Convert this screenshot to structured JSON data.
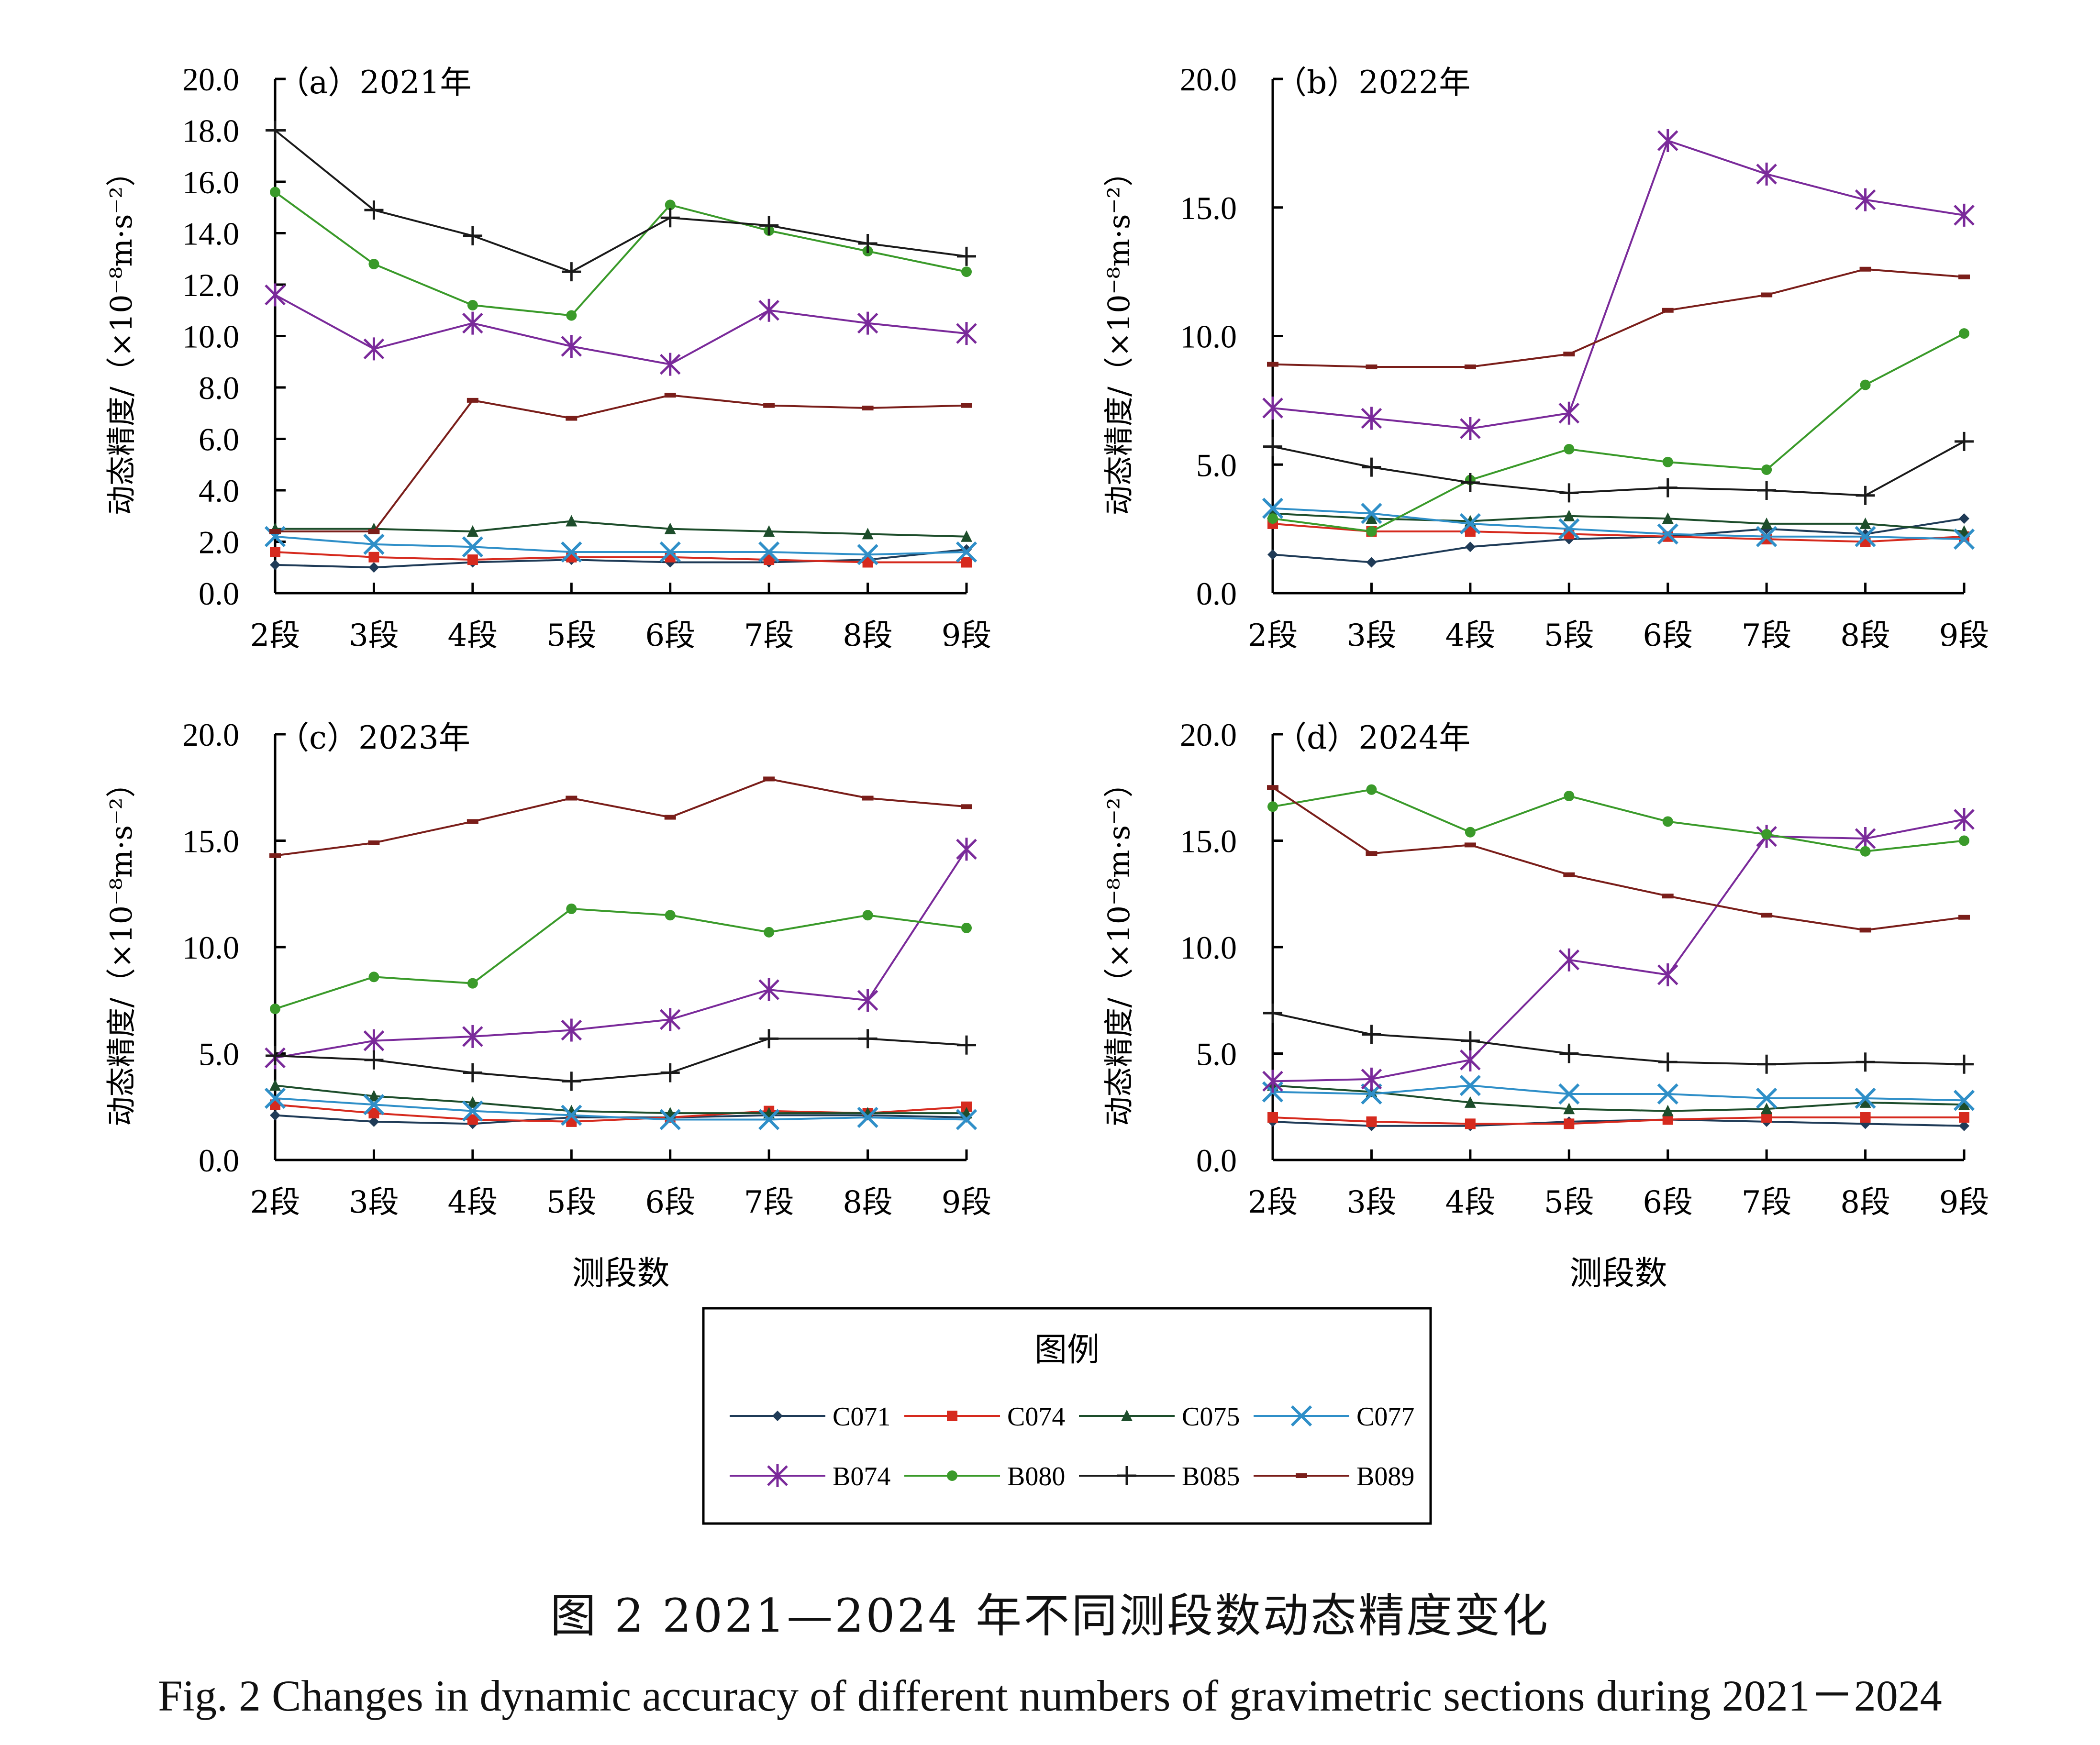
{
  "legend_title": "图例",
  "caption_cn": "图 2   2021—2024 年不同测段数动态精度变化",
  "caption_en": "Fig. 2    Changes in dynamic accuracy of different numbers of gravimetric sections during 2021－2024",
  "colors": {
    "C071": "#1f3b57",
    "C074": "#d62a1e",
    "C075": "#1d4d2b",
    "C077": "#2f8fc8",
    "B074": "#7a2a9a",
    "B080": "#3a9a2a",
    "B085": "#1a1a1a",
    "B089": "#7a1e1a"
  },
  "markers": {
    "C071": "diamond",
    "C074": "square",
    "C075": "triangle",
    "C077": "x",
    "B074": "asterisk",
    "B080": "circle",
    "B085": "plus",
    "B089": "dash"
  },
  "chart_data": [
    {
      "type": "line",
      "title": "（a）2021年",
      "ylabel": "动态精度/（×10⁻⁸m·s⁻²）",
      "xlabel": "",
      "categories": [
        "2段",
        "3段",
        "4段",
        "5段",
        "6段",
        "7段",
        "8段",
        "9段"
      ],
      "ylim": [
        0,
        20
      ],
      "yticks": [
        "0.0",
        "2.0",
        "4.0",
        "6.0",
        "8.0",
        "10.0",
        "12.0",
        "14.0",
        "16.0",
        "18.0",
        "20.0"
      ],
      "series": [
        {
          "name": "C071",
          "values": [
            1.1,
            1.0,
            1.2,
            1.3,
            1.2,
            1.2,
            1.3,
            1.7
          ]
        },
        {
          "name": "C074",
          "values": [
            1.6,
            1.4,
            1.3,
            1.4,
            1.4,
            1.3,
            1.2,
            1.2
          ]
        },
        {
          "name": "C075",
          "values": [
            2.5,
            2.5,
            2.4,
            2.8,
            2.5,
            2.4,
            2.3,
            2.2
          ]
        },
        {
          "name": "C077",
          "values": [
            2.2,
            1.9,
            1.8,
            1.6,
            1.6,
            1.6,
            1.5,
            1.6
          ]
        },
        {
          "name": "B074",
          "values": [
            11.6,
            9.5,
            10.5,
            9.6,
            8.9,
            11.0,
            10.5,
            10.1
          ]
        },
        {
          "name": "B080",
          "values": [
            15.6,
            12.8,
            11.2,
            10.8,
            15.1,
            14.1,
            13.3,
            12.5
          ]
        },
        {
          "name": "B085",
          "values": [
            18.0,
            14.9,
            13.9,
            12.5,
            14.6,
            14.3,
            13.6,
            13.1
          ]
        },
        {
          "name": "B089",
          "values": [
            2.4,
            2.4,
            7.5,
            6.8,
            7.7,
            7.3,
            7.2,
            7.3
          ]
        }
      ]
    },
    {
      "type": "line",
      "title": "（b）2022年",
      "ylabel": "动态精度/（×10⁻⁸m·s⁻²）",
      "xlabel": "",
      "categories": [
        "2段",
        "3段",
        "4段",
        "5段",
        "6段",
        "7段",
        "8段",
        "9段"
      ],
      "ylim": [
        0,
        20
      ],
      "yticks": [
        "0.0",
        "5.0",
        "10.0",
        "15.0",
        "20.0"
      ],
      "series": [
        {
          "name": "C071",
          "values": [
            1.5,
            1.2,
            1.8,
            2.1,
            2.2,
            2.5,
            2.3,
            2.9
          ]
        },
        {
          "name": "C074",
          "values": [
            2.7,
            2.4,
            2.4,
            2.3,
            2.2,
            2.1,
            2.0,
            2.2
          ]
        },
        {
          "name": "C075",
          "values": [
            3.1,
            2.9,
            2.8,
            3.0,
            2.9,
            2.7,
            2.7,
            2.4
          ]
        },
        {
          "name": "C077",
          "values": [
            3.3,
            3.1,
            2.7,
            2.5,
            2.3,
            2.2,
            2.2,
            2.1
          ]
        },
        {
          "name": "B074",
          "values": [
            7.2,
            6.8,
            6.4,
            7.0,
            17.6,
            16.3,
            15.3,
            14.7
          ]
        },
        {
          "name": "B080",
          "values": [
            2.9,
            2.4,
            4.4,
            5.6,
            5.1,
            4.8,
            8.1,
            10.1
          ]
        },
        {
          "name": "B085",
          "values": [
            5.7,
            4.9,
            4.3,
            3.9,
            4.1,
            4.0,
            3.8,
            5.9
          ]
        },
        {
          "name": "B089",
          "values": [
            8.9,
            8.8,
            8.8,
            9.3,
            11.0,
            11.6,
            12.6,
            12.3
          ]
        }
      ]
    },
    {
      "type": "line",
      "title": "（c）2023年",
      "ylabel": "动态精度/（×10⁻⁸m·s⁻²）",
      "xlabel": "测段数",
      "categories": [
        "2段",
        "3段",
        "4段",
        "5段",
        "6段",
        "7段",
        "8段",
        "9段"
      ],
      "ylim": [
        0,
        20
      ],
      "yticks": [
        "0.0",
        "5.0",
        "10.0",
        "15.0",
        "20.0"
      ],
      "series": [
        {
          "name": "C071",
          "values": [
            2.1,
            1.8,
            1.7,
            2.0,
            2.0,
            2.1,
            2.1,
            2.0
          ]
        },
        {
          "name": "C074",
          "values": [
            2.6,
            2.2,
            1.9,
            1.8,
            2.0,
            2.3,
            2.2,
            2.5
          ]
        },
        {
          "name": "C075",
          "values": [
            3.5,
            3.0,
            2.7,
            2.3,
            2.2,
            2.2,
            2.2,
            2.2
          ]
        },
        {
          "name": "C077",
          "values": [
            2.9,
            2.6,
            2.3,
            2.1,
            1.9,
            1.9,
            2.0,
            1.9
          ]
        },
        {
          "name": "B074",
          "values": [
            4.8,
            5.6,
            5.8,
            6.1,
            6.6,
            8.0,
            7.5,
            14.6
          ]
        },
        {
          "name": "B080",
          "values": [
            7.1,
            8.6,
            8.3,
            11.8,
            11.5,
            10.7,
            11.5,
            10.9
          ]
        },
        {
          "name": "B085",
          "values": [
            4.9,
            4.7,
            4.1,
            3.7,
            4.1,
            5.7,
            5.7,
            5.4
          ]
        },
        {
          "name": "B089",
          "values": [
            14.3,
            14.9,
            15.9,
            17.0,
            16.1,
            17.9,
            17.0,
            16.6
          ]
        }
      ]
    },
    {
      "type": "line",
      "title": "（d）2024年",
      "ylabel": "动态精度/（×10⁻⁸m·s⁻²）",
      "xlabel": "测段数",
      "categories": [
        "2段",
        "3段",
        "4段",
        "5段",
        "6段",
        "7段",
        "8段",
        "9段"
      ],
      "ylim": [
        0,
        20
      ],
      "yticks": [
        "0.0",
        "5.0",
        "10.0",
        "15.0",
        "20.0"
      ],
      "series": [
        {
          "name": "C071",
          "values": [
            1.8,
            1.6,
            1.6,
            1.8,
            1.9,
            1.8,
            1.7,
            1.6
          ]
        },
        {
          "name": "C074",
          "values": [
            2.0,
            1.8,
            1.7,
            1.7,
            1.9,
            2.0,
            2.0,
            2.0
          ]
        },
        {
          "name": "C075",
          "values": [
            3.5,
            3.2,
            2.7,
            2.4,
            2.3,
            2.4,
            2.7,
            2.6
          ]
        },
        {
          "name": "C077",
          "values": [
            3.2,
            3.1,
            3.5,
            3.1,
            3.1,
            2.9,
            2.9,
            2.8
          ]
        },
        {
          "name": "B074",
          "values": [
            3.7,
            3.8,
            4.7,
            9.4,
            8.7,
            15.2,
            15.1,
            16.0
          ]
        },
        {
          "name": "B080",
          "values": [
            16.6,
            17.4,
            15.4,
            17.1,
            15.9,
            15.3,
            14.5,
            15.0
          ]
        },
        {
          "name": "B085",
          "values": [
            6.9,
            5.9,
            5.6,
            5.0,
            4.6,
            4.5,
            4.6,
            4.5
          ]
        },
        {
          "name": "B089",
          "values": [
            17.5,
            14.4,
            14.8,
            13.4,
            12.4,
            11.5,
            10.8,
            11.4
          ]
        }
      ]
    }
  ]
}
